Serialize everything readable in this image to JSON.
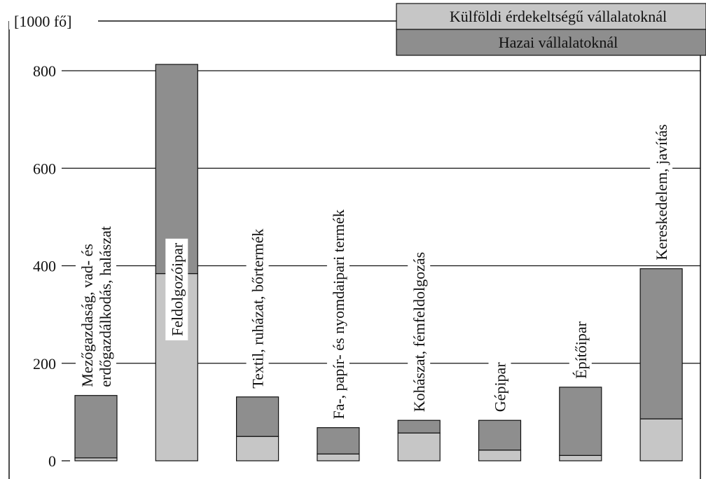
{
  "chart_data": {
    "type": "stacked_bar",
    "y_label": "[1000 fő]",
    "categories": [
      [
        "Mezőgazdaság, vad- és",
        "erdőgazdálkodás, halászat"
      ],
      [
        "Feldolgozóipar"
      ],
      [
        "Textil, ruházat, bőrtermék"
      ],
      [
        "Fa-, papír- és nyomdaipari termék"
      ],
      [
        "Kohászat, fémfeldolgozás"
      ],
      [
        "Gépipar"
      ],
      [
        "Építőipar"
      ],
      [
        "Kereskedelem, javítás"
      ]
    ],
    "series": [
      {
        "name": "Külföldi érdekeltségű vállalatoknál",
        "color": "#c6c6c6",
        "values": [
          6,
          384,
          50,
          14,
          57,
          22,
          11,
          86
        ]
      },
      {
        "name": "Hazai vállalatoknál",
        "color": "#8e8e8e",
        "values": [
          128,
          429,
          81,
          54,
          26,
          61,
          140,
          308
        ]
      }
    ],
    "ylim": [
      0,
      800
    ],
    "yticks": [
      0,
      200,
      400,
      600,
      800
    ],
    "grid": true
  }
}
